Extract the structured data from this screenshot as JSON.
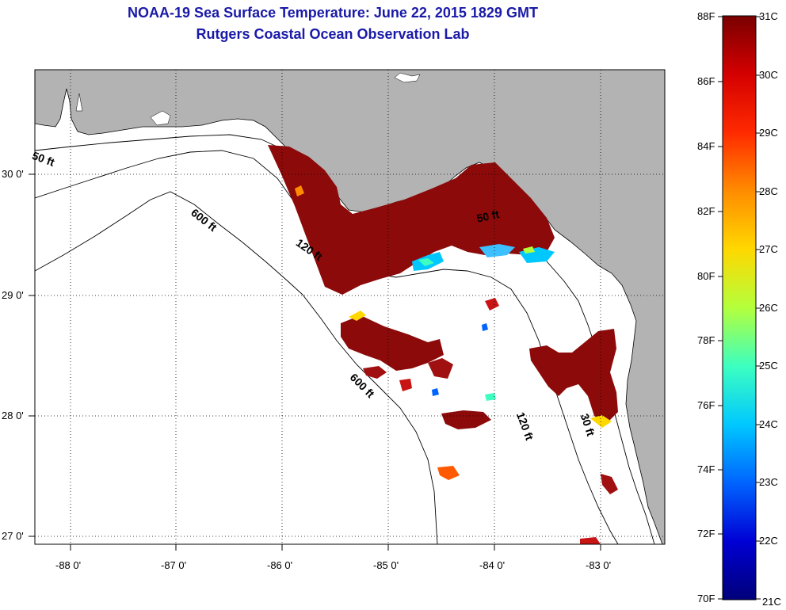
{
  "title": {
    "line1": "NOAA-19 Sea Surface Temperature:  June 22, 2015 1829 GMT",
    "line2": "Rutgers Coastal Ocean Observation Lab"
  },
  "map": {
    "lat_labels": [
      "30 0'",
      "29 0'",
      "28 0'",
      "27 0'"
    ],
    "lon_labels": [
      "-88 0'",
      "-87 0'",
      "-86 0'",
      "-85 0'",
      "-84 0'",
      "-83 0'"
    ],
    "contour_labels": [
      "50 ft",
      "600 ft",
      "120 ft",
      "50 ft",
      "600 ft",
      "120 ft",
      "30 ft"
    ],
    "colors": {
      "land": "#b3b3b3",
      "sea": "#ffffff",
      "sst_warm": "#8c0a0a",
      "sst_hot": "#c81414"
    }
  },
  "colorbar": {
    "f_labels": [
      "88F",
      "86F",
      "84F",
      "82F",
      "80F",
      "78F",
      "76F",
      "74F",
      "72F",
      "70F"
    ],
    "c_labels": [
      "31C",
      "30C",
      "29C",
      "28C",
      "27C",
      "26C",
      "25C",
      "24C",
      "23C",
      "22C",
      "21C"
    ],
    "gradient": [
      "#7a0000",
      "#d40000",
      "#ff2a00",
      "#ff8c00",
      "#ffd800",
      "#b4ff3c",
      "#3cffc0",
      "#00c8ff",
      "#0064ff",
      "#0000d4",
      "#00007a"
    ]
  }
}
